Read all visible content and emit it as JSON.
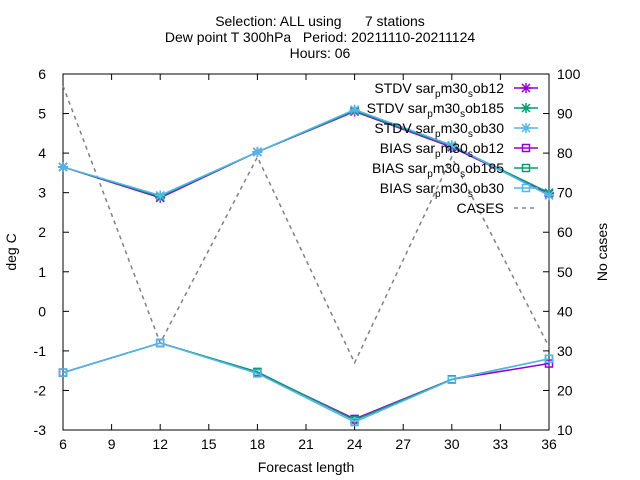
{
  "chart_data": {
    "type": "line",
    "title_lines": [
      "Selection: ALL using      7 stations",
      "Dew point T 300hPa   Period: 20211110-20211124",
      "Hours: 06"
    ],
    "xlabel": "Forecast length",
    "ylabel": "deg C",
    "y2label": "No cases",
    "x": [
      6,
      12,
      18,
      24,
      30,
      36
    ],
    "xlim": [
      6,
      36
    ],
    "xticks": [
      "6",
      "9",
      "12",
      "15",
      "18",
      "21",
      "24",
      "27",
      "30",
      "33",
      "36"
    ],
    "ylim": [
      -3,
      6
    ],
    "yticks": [
      "-3",
      "-2",
      "-1",
      "0",
      "1",
      "2",
      "3",
      "4",
      "5",
      "6"
    ],
    "y2lim": [
      10,
      100
    ],
    "y2ticks": [
      "10",
      "20",
      "30",
      "40",
      "50",
      "60",
      "70",
      "80",
      "90",
      "100"
    ],
    "legend_position": "top-right",
    "grid": false,
    "series": [
      {
        "name": "STDV sar_pm30_sob12",
        "name_parts": [
          "STDV sar",
          "p",
          "m30",
          "s",
          "ob12"
        ],
        "color": "#9400d3",
        "marker": "star",
        "axis": "y1",
        "values": [
          3.65,
          2.87,
          4.03,
          5.05,
          4.15,
          2.98
        ]
      },
      {
        "name": "STDV sar_pm30_sob185",
        "name_parts": [
          "STDV sar",
          "p",
          "m30",
          "s",
          "ob185"
        ],
        "color": "#009e73",
        "marker": "star",
        "axis": "y1",
        "values": [
          3.65,
          2.9,
          4.03,
          5.07,
          4.18,
          3.0
        ]
      },
      {
        "name": "STDV sar_pm30_sob30",
        "name_parts": [
          "STDV sar",
          "p",
          "m30",
          "s",
          "ob30"
        ],
        "color": "#56b4e9",
        "marker": "star",
        "axis": "y1",
        "values": [
          3.65,
          2.93,
          4.03,
          5.1,
          4.2,
          2.93
        ]
      },
      {
        "name": "BIAS sar_pm30_sob12",
        "name_parts": [
          "BIAS sar",
          "p",
          "m30",
          "s",
          "ob12"
        ],
        "color": "#9400d3",
        "marker": "square",
        "axis": "y1",
        "values": [
          -1.55,
          -0.8,
          -1.55,
          -2.72,
          -1.72,
          -1.32
        ]
      },
      {
        "name": "BIAS sar_pm30_sob185",
        "name_parts": [
          "BIAS sar",
          "p",
          "m30",
          "s",
          "ob185"
        ],
        "color": "#009e73",
        "marker": "square",
        "axis": "y1",
        "values": [
          -1.55,
          -0.8,
          -1.53,
          -2.75,
          -1.72,
          -1.2
        ]
      },
      {
        "name": "BIAS sar_pm30_sob30",
        "name_parts": [
          "BIAS sar",
          "p",
          "m30",
          "s",
          "ob30"
        ],
        "color": "#56b4e9",
        "marker": "square",
        "axis": "y1",
        "values": [
          -1.55,
          -0.8,
          -1.57,
          -2.8,
          -1.73,
          -1.2
        ]
      },
      {
        "name": "CASES",
        "name_parts": [
          "CASES"
        ],
        "color": "#808080",
        "marker": "none",
        "dash": true,
        "axis": "y2",
        "values": [
          97,
          32,
          79,
          27,
          79,
          31
        ]
      }
    ]
  }
}
